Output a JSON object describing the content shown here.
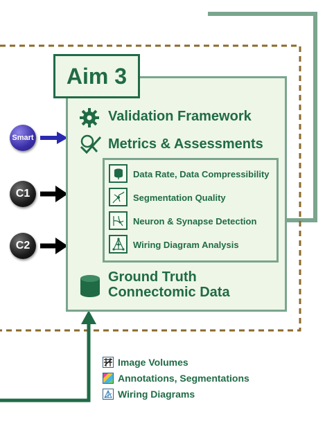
{
  "aim": {
    "title": "Aim 3",
    "items": [
      {
        "label": "Validation Framework",
        "icon": "gear-icon"
      },
      {
        "label": "Metrics & Assessments",
        "icon": "checkmark-magnifier-icon"
      }
    ],
    "metrics": [
      {
        "label": "Data Rate, Data Compressibility",
        "icon": "database-icon"
      },
      {
        "label": "Segmentation Quality",
        "icon": "neuron-icon"
      },
      {
        "label": "Neuron & Synapse Detection",
        "icon": "synapse-icon"
      },
      {
        "label": "Wiring Diagram Analysis",
        "icon": "wiring-icon"
      }
    ],
    "ground_truth": {
      "line1": "Ground Truth",
      "line2": "Connectomic Data",
      "icon": "database-cylinder-icon"
    }
  },
  "inputs": [
    {
      "label": "Smart",
      "color": "#3b2fa8"
    },
    {
      "label": "C1",
      "color": "#1c1c1c"
    },
    {
      "label": "C2",
      "color": "#1c1c1c"
    }
  ],
  "legend": [
    {
      "label": "Image Volumes",
      "icon": "image-volume-icon"
    },
    {
      "label": "Annotations, Segmentations",
      "icon": "segmentation-icon"
    },
    {
      "label": "Wiring Diagrams",
      "icon": "wiring-diagram-icon"
    }
  ],
  "colors": {
    "aim_green": "#1f6b46",
    "box_fill": "#eef6e8",
    "box_border": "#7aa58e",
    "dashed_border": "#8b6a2b",
    "smart_arrow": "#2a2ab0",
    "c_arrow": "#000000"
  }
}
